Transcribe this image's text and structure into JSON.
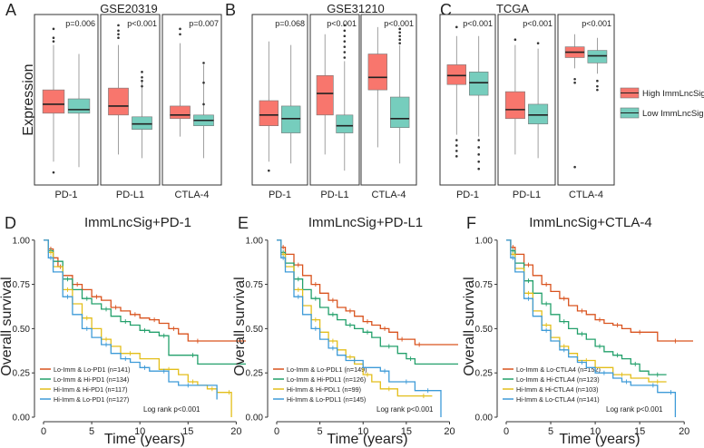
{
  "colors": {
    "high": "#F8766D",
    "low": "#76CDBD",
    "red": "#D9531E",
    "green": "#23A06B",
    "yellow": "#E3BE1A",
    "blue": "#3E9BD8"
  },
  "legend": {
    "high": "High ImmLncSig",
    "low": "Low ImmLncSig"
  },
  "chart_data": [
    {
      "type": "box",
      "panel": "A",
      "title": "GSE20319",
      "ylabel": "Expression",
      "categories": [
        "PD-1",
        "PD-L1",
        "CTLA-4"
      ],
      "pvalues": [
        "p=0.006",
        "p<0.001",
        "p=0.007"
      ],
      "series": [
        {
          "name": "High ImmLncSig",
          "boxes": [
            {
              "min": 1.8,
              "q1": 4.5,
              "median": 5.0,
              "q3": 5.8,
              "max": 8.3,
              "outliers": [
                9.2,
                8.7,
                8.5,
                1.2
              ]
            },
            {
              "min": 2.2,
              "q1": 4.4,
              "median": 4.9,
              "q3": 5.9,
              "max": 8.3,
              "outliers": [
                9.4,
                9.1,
                8.9,
                8.7
              ]
            },
            {
              "min": 3.2,
              "q1": 4.2,
              "median": 4.4,
              "q3": 4.9,
              "max": 8.4,
              "outliers": [
                9.2,
                8.9
              ]
            }
          ]
        },
        {
          "name": "Low ImmLncSig",
          "boxes": [
            {
              "min": 1.5,
              "q1": 4.5,
              "median": 4.7,
              "q3": 5.3,
              "max": 7.8,
              "outliers": []
            },
            {
              "min": 2.0,
              "q1": 3.6,
              "median": 3.9,
              "q3": 4.3,
              "max": 6.3,
              "outliers": [
                6.8,
                6.5,
                6.3,
                6.0
              ]
            },
            {
              "min": 2.0,
              "q1": 3.8,
              "median": 4.1,
              "q3": 4.4,
              "max": 7.2,
              "outliers": [
                7.3,
                6.2,
                5.0
              ]
            }
          ]
        }
      ]
    },
    {
      "type": "box",
      "panel": "B",
      "title": "GSE31210",
      "ylabel": "",
      "categories": [
        "PD-1",
        "PD-L1",
        "CTLA-4"
      ],
      "pvalues": [
        "p=0.068",
        "p<0.001",
        "p<0.001"
      ],
      "series": [
        {
          "name": "High ImmLncSig",
          "boxes": [
            {
              "min": 1.8,
              "q1": 3.8,
              "median": 4.4,
              "q3": 5.2,
              "max": 8.5,
              "outliers": [
                1.3
              ]
            },
            {
              "min": 2.2,
              "q1": 4.4,
              "median": 5.6,
              "q3": 6.6,
              "max": 8.9,
              "outliers": []
            },
            {
              "min": 2.6,
              "q1": 5.8,
              "median": 6.5,
              "q3": 7.8,
              "max": 9.3,
              "outliers": []
            }
          ]
        },
        {
          "name": "Low ImmLncSig",
          "boxes": [
            {
              "min": 1.7,
              "q1": 3.4,
              "median": 4.2,
              "q3": 4.9,
              "max": 8.3,
              "outliers": []
            },
            {
              "min": 1.3,
              "q1": 3.4,
              "median": 3.8,
              "q3": 4.4,
              "max": 7.4,
              "outliers": [
                9.4,
                9.1,
                8.8,
                8.5,
                8.2,
                7.9,
                7.6
              ]
            },
            {
              "min": 1.7,
              "q1": 3.7,
              "median": 4.2,
              "q3": 5.4,
              "max": 8.3,
              "outliers": [
                9.2,
                9.0,
                8.8,
                8.6,
                8.4
              ]
            }
          ]
        }
      ]
    },
    {
      "type": "box",
      "panel": "C",
      "title": "TCGA",
      "ylabel": "",
      "categories": [
        "PD-1",
        "PD-L1",
        "CTLA-4"
      ],
      "pvalues": [
        "p<0.001",
        "p<0.001",
        "p<0.001"
      ],
      "series": [
        {
          "name": "High ImmLncSig",
          "boxes": [
            {
              "min": 3.3,
              "q1": 6.1,
              "median": 6.6,
              "q3": 7.2,
              "max": 8.8,
              "outliers": [
                3.0,
                2.7,
                2.4,
                2.1,
                9.3
              ]
            },
            {
              "min": 2.2,
              "q1": 4.2,
              "median": 4.7,
              "q3": 5.7,
              "max": 8.3,
              "outliers": [
                8.6
              ]
            },
            {
              "min": 7.0,
              "q1": 7.6,
              "median": 7.9,
              "q3": 8.2,
              "max": 8.9,
              "outliers": [
                6.4,
                6.2,
                1.5
              ]
            }
          ]
        },
        {
          "name": "Low ImmLncSig",
          "boxes": [
            {
              "min": 3.2,
              "q1": 5.5,
              "median": 6.2,
              "q3": 6.8,
              "max": 8.8,
              "outliers": [
                3.0,
                2.6,
                2.2,
                1.8,
                1.4
              ]
            },
            {
              "min": 2.0,
              "q1": 3.9,
              "median": 4.4,
              "q3": 5.0,
              "max": 8.1,
              "outliers": [
                8.4
              ]
            },
            {
              "min": 6.7,
              "q1": 7.3,
              "median": 7.7,
              "q3": 8.0,
              "max": 8.7,
              "outliers": [
                6.3,
                6.0,
                5.8
              ]
            }
          ]
        }
      ]
    },
    {
      "type": "line",
      "subtype": "kaplan-meier",
      "panel": "D",
      "title": "ImmLncSig+PD-1",
      "xlabel": "Time (years)",
      "ylabel": "Overall survival",
      "xlim": [
        0,
        21
      ],
      "ylim": [
        0,
        1.05
      ],
      "xticks": [
        0,
        5,
        10,
        15,
        20
      ],
      "yticks": [
        0.0,
        0.25,
        0.5,
        0.75,
        1.0
      ],
      "yticklabels": [
        "0.00",
        "0.25",
        "0.50",
        "0.75",
        "1.00"
      ],
      "annotation": "Log rank p<0.001",
      "series": [
        {
          "name": "Lo-Imm & Lo-PD1 (n=141)",
          "color": "red",
          "x": [
            0,
            0.5,
            1,
            1.5,
            2,
            3,
            4,
            5,
            6,
            7,
            8,
            9,
            10,
            11,
            12,
            13,
            14,
            15,
            17,
            21
          ],
          "y": [
            1,
            0.95,
            0.9,
            0.85,
            0.8,
            0.75,
            0.72,
            0.68,
            0.66,
            0.62,
            0.6,
            0.58,
            0.56,
            0.55,
            0.53,
            0.5,
            0.47,
            0.43,
            0.43,
            0.43
          ]
        },
        {
          "name": "Lo-Imm & Hi-PD1 (n=134)",
          "color": "green",
          "x": [
            0,
            0.5,
            1,
            2,
            3,
            4,
            5,
            6,
            7,
            8,
            9,
            10,
            11,
            12,
            13,
            15,
            16,
            21
          ],
          "y": [
            1,
            0.94,
            0.88,
            0.78,
            0.72,
            0.67,
            0.64,
            0.61,
            0.57,
            0.54,
            0.52,
            0.49,
            0.48,
            0.46,
            0.35,
            0.35,
            0.3,
            0.3
          ]
        },
        {
          "name": "Hi-Imm & Hi-PD1 (n=117)",
          "color": "yellow",
          "x": [
            0,
            0.5,
            1,
            2,
            3,
            4,
            5,
            6,
            7,
            8,
            10,
            12,
            14,
            15,
            16,
            17,
            18,
            19,
            19.5
          ],
          "y": [
            1,
            0.93,
            0.85,
            0.72,
            0.64,
            0.56,
            0.5,
            0.44,
            0.4,
            0.36,
            0.33,
            0.27,
            0.24,
            0.2,
            0.18,
            0.16,
            0.14,
            0.14,
            0.0
          ]
        },
        {
          "name": "Hi-Imm & Lo-PD1 (n=127)",
          "color": "blue",
          "x": [
            0,
            0.5,
            1,
            2,
            3,
            4,
            5,
            6,
            7,
            8,
            9,
            10,
            11,
            12,
            13,
            14,
            16,
            18
          ],
          "y": [
            1,
            0.9,
            0.82,
            0.68,
            0.58,
            0.5,
            0.45,
            0.41,
            0.36,
            0.33,
            0.31,
            0.28,
            0.26,
            0.26,
            0.2,
            0.18,
            0.18,
            0.1
          ]
        }
      ]
    },
    {
      "type": "line",
      "subtype": "kaplan-meier",
      "panel": "E",
      "title": "ImmLncSig+PD-L1",
      "xlabel": "Time (years)",
      "ylabel": "Overall survival",
      "xlim": [
        0,
        21
      ],
      "ylim": [
        0,
        1.05
      ],
      "xticks": [
        0,
        5,
        10,
        15,
        20
      ],
      "yticks": [
        0.0,
        0.25,
        0.5,
        0.75,
        1.0
      ],
      "yticklabels": [
        "0.00",
        "0.25",
        "0.50",
        "0.75",
        "1.00"
      ],
      "annotation": "Log rank p<0.001",
      "series": [
        {
          "name": "Lo-Imm & Lo-PDL1 (n=149)",
          "color": "red",
          "x": [
            0,
            0.5,
            1,
            2,
            3,
            4,
            5,
            6,
            7,
            8,
            9,
            10,
            11,
            12,
            13,
            14,
            15,
            16,
            17,
            21
          ],
          "y": [
            1,
            0.96,
            0.92,
            0.86,
            0.8,
            0.75,
            0.7,
            0.66,
            0.62,
            0.6,
            0.57,
            0.54,
            0.52,
            0.5,
            0.48,
            0.44,
            0.44,
            0.41,
            0.41,
            0.41
          ]
        },
        {
          "name": "Lo-Imm & Hi-PDL1 (n=126)",
          "color": "green",
          "x": [
            0,
            0.5,
            1,
            2,
            3,
            4,
            5,
            6,
            7,
            8,
            9,
            10,
            11,
            12,
            14,
            15,
            16,
            21
          ],
          "y": [
            1,
            0.93,
            0.87,
            0.78,
            0.72,
            0.67,
            0.62,
            0.58,
            0.55,
            0.52,
            0.5,
            0.48,
            0.45,
            0.4,
            0.36,
            0.33,
            0.3,
            0.3
          ]
        },
        {
          "name": "Hi-Imm & Hi-PDL1 (n=99)",
          "color": "yellow",
          "x": [
            0,
            0.5,
            1,
            2,
            3,
            4,
            5,
            6,
            7,
            8,
            9,
            10,
            11,
            12,
            14,
            16,
            18
          ],
          "y": [
            1,
            0.92,
            0.85,
            0.72,
            0.63,
            0.55,
            0.48,
            0.43,
            0.38,
            0.34,
            0.3,
            0.24,
            0.2,
            0.16,
            0.12,
            0.12,
            0.12
          ]
        },
        {
          "name": "Hi-Imm & Lo-PDL1 (n=145)",
          "color": "blue",
          "x": [
            0,
            0.5,
            1,
            2,
            3,
            4,
            5,
            6,
            7,
            8,
            10,
            12,
            13,
            14,
            16,
            17,
            18,
            19
          ],
          "y": [
            1,
            0.9,
            0.82,
            0.68,
            0.58,
            0.5,
            0.44,
            0.39,
            0.35,
            0.32,
            0.28,
            0.26,
            0.2,
            0.2,
            0.15,
            0.15,
            0.15,
            0.0
          ]
        }
      ]
    },
    {
      "type": "line",
      "subtype": "kaplan-meier",
      "panel": "F",
      "title": "ImmLncSig+CTLA-4",
      "xlabel": "Time (years)",
      "ylabel": "Overall survival",
      "xlim": [
        0,
        21
      ],
      "ylim": [
        0,
        1.05
      ],
      "xticks": [
        0,
        5,
        10,
        15,
        20
      ],
      "yticks": [
        0.0,
        0.25,
        0.5,
        0.75,
        1.0
      ],
      "yticklabels": [
        "0.00",
        "0.25",
        "0.50",
        "0.75",
        "1.00"
      ],
      "annotation": "Log rank p<0.001",
      "series": [
        {
          "name": "Lo-Imm & Lo-CTLA4 (n=152)",
          "color": "red",
          "x": [
            0,
            0.5,
            1,
            2,
            3,
            4,
            5,
            6,
            7,
            8,
            9,
            10,
            11,
            12,
            13,
            14,
            16,
            17,
            21
          ],
          "y": [
            1,
            0.96,
            0.92,
            0.86,
            0.8,
            0.75,
            0.71,
            0.67,
            0.63,
            0.6,
            0.58,
            0.55,
            0.53,
            0.52,
            0.5,
            0.48,
            0.48,
            0.43,
            0.43
          ]
        },
        {
          "name": "Lo-Imm & Hi-CTLA4 (n=123)",
          "color": "green",
          "x": [
            0,
            0.5,
            1,
            2,
            3,
            4,
            5,
            6,
            7,
            8,
            9,
            10,
            11,
            12,
            13,
            14,
            15,
            16,
            18
          ],
          "y": [
            1,
            0.94,
            0.87,
            0.77,
            0.7,
            0.64,
            0.58,
            0.54,
            0.5,
            0.47,
            0.44,
            0.4,
            0.37,
            0.35,
            0.33,
            0.3,
            0.26,
            0.24,
            0.24
          ]
        },
        {
          "name": "Hi-Imm & Hi-CTLA4 (n=103)",
          "color": "yellow",
          "x": [
            0,
            0.5,
            1,
            2,
            3,
            4,
            5,
            6,
            7,
            8,
            10,
            12,
            14,
            16,
            18
          ],
          "y": [
            1,
            0.92,
            0.84,
            0.7,
            0.6,
            0.52,
            0.45,
            0.4,
            0.36,
            0.32,
            0.28,
            0.24,
            0.22,
            0.2,
            0.2
          ]
        },
        {
          "name": "Hi-Imm & Lo-CTLA4 (n=141)",
          "color": "blue",
          "x": [
            0,
            0.5,
            1,
            2,
            3,
            4,
            5,
            6,
            7,
            8,
            9,
            10,
            12,
            13,
            14,
            16,
            17,
            18,
            19
          ],
          "y": [
            1,
            0.9,
            0.82,
            0.67,
            0.57,
            0.49,
            0.43,
            0.38,
            0.34,
            0.31,
            0.28,
            0.25,
            0.22,
            0.2,
            0.18,
            0.18,
            0.14,
            0.14,
            0.0
          ]
        }
      ]
    }
  ]
}
